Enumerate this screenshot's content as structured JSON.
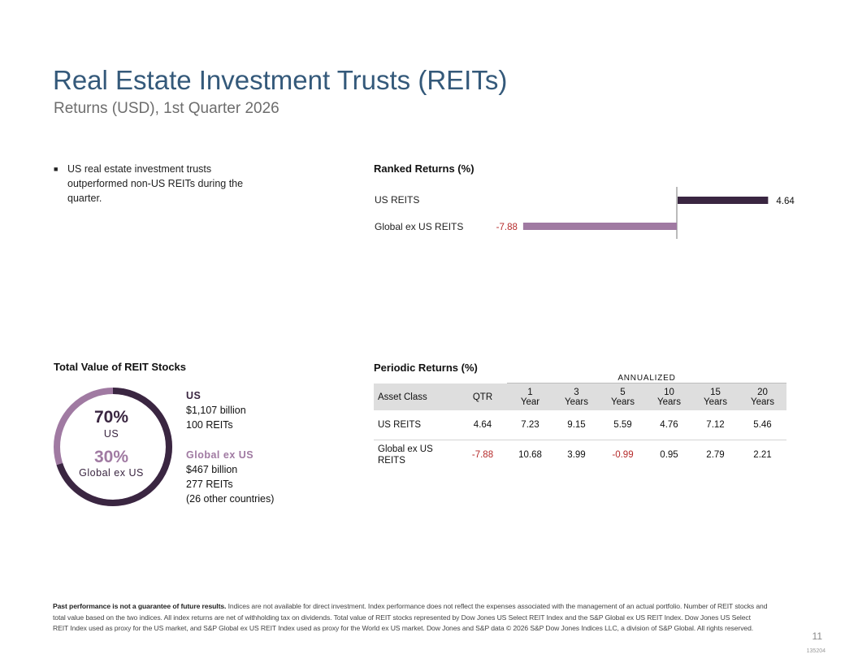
{
  "header": {
    "title": "Real Estate Investment Trusts (REITs)",
    "subtitle": "Returns (USD), 1st Quarter 2026"
  },
  "bullet": {
    "text": "US real estate investment trusts outperformed non-US REITs during the quarter."
  },
  "ranked": {
    "heading": "Ranked Returns (%)",
    "items": [
      {
        "label": "US REITS",
        "value_text": "4.64"
      },
      {
        "label": "Global ex US REITS",
        "value_text": "-7.88"
      }
    ],
    "colors": {
      "us": "#3a2641",
      "global": "#a07aa2",
      "negative": "#b52a2a"
    }
  },
  "chart_data": {
    "type": "bar",
    "title": "Ranked Returns (%)",
    "orientation": "horizontal",
    "categories": [
      "US REITS",
      "Global ex US REITS"
    ],
    "values": [
      4.64,
      -7.88
    ]
  },
  "total_value": {
    "heading": "Total Value of REIT Stocks",
    "donut": {
      "us_pct": "70%",
      "us_label": "US",
      "global_pct": "30%",
      "global_label": "Global ex US",
      "us_share": 0.7,
      "global_share": 0.3,
      "us_color": "#3a2641",
      "global_color": "#a07aa2"
    },
    "us": {
      "name": "US",
      "value": "$1,107 billion",
      "count": "100 REITs"
    },
    "global": {
      "name": "Global ex US",
      "value": "$467 billion",
      "count": "277 REITs",
      "note": "(26 other countries)"
    }
  },
  "periodic": {
    "heading": "Periodic Returns (%)",
    "annualized_label": "ANNUALIZED",
    "columns": {
      "asset": "Asset Class",
      "qtr": "QTR",
      "y1": [
        "1",
        "Year"
      ],
      "y3": [
        "3",
        "Years"
      ],
      "y5": [
        "5",
        "Years"
      ],
      "y10": [
        "10",
        "Years"
      ],
      "y15": [
        "15",
        "Years"
      ],
      "y20": [
        "20",
        "Years"
      ]
    },
    "rows": [
      {
        "name": "US REITS",
        "qtr": "4.64",
        "y1": "7.23",
        "y3": "9.15",
        "y5": "5.59",
        "y10": "4.76",
        "y15": "7.12",
        "y20": "5.46"
      },
      {
        "name": "Global ex US REITS",
        "qtr": "-7.88",
        "y1": "10.68",
        "y3": "3.99",
        "y5": "-0.99",
        "y10": "0.95",
        "y15": "2.79",
        "y20": "2.21"
      }
    ]
  },
  "footnote": {
    "bold": "Past performance is not a guarantee of future results.",
    "text": " Indices are not available for direct investment. Index performance does not reflect the expenses associated with the management of an actual portfolio. Number of REIT stocks and total value based on the two indices. All index returns are net of withholding tax on dividends. Total value of REIT stocks represented by Dow Jones US Select REIT Index and the S&P Global ex US REIT Index. Dow Jones US Select REIT Index used as proxy for the US market, and S&P Global ex US REIT Index used as proxy for the World ex US market. Dow Jones and S&P data © 2026 S&P Dow Jones Indices LLC, a division of S&P Global. All rights reserved."
  },
  "page": {
    "number": "11",
    "code": "135204"
  }
}
